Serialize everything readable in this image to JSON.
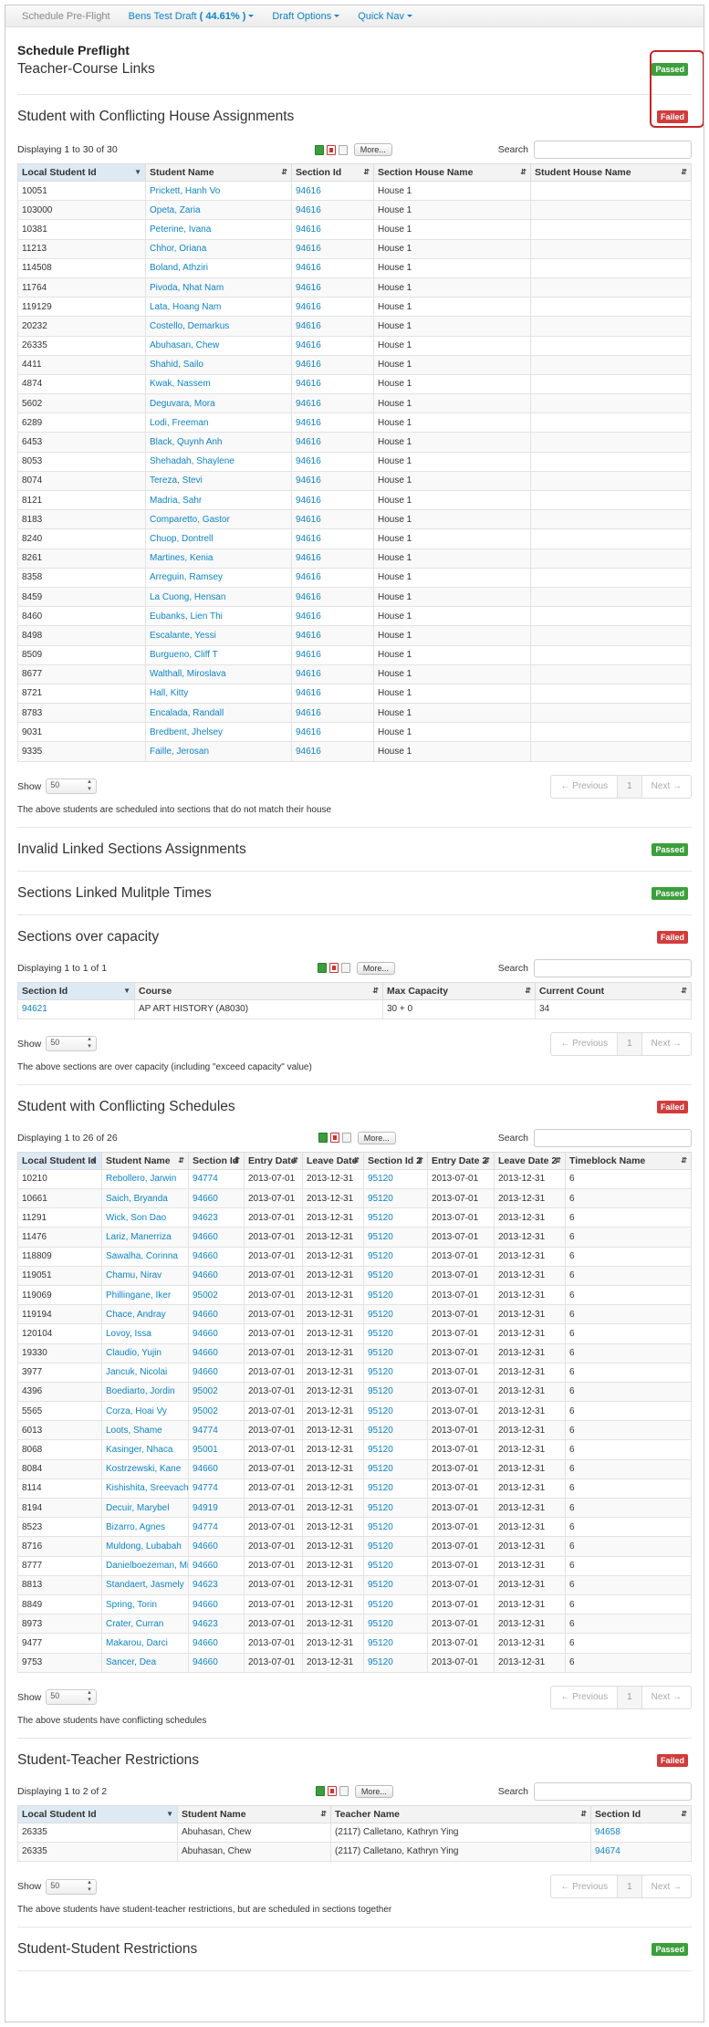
{
  "nav": {
    "home": "Schedule Pre-Flight",
    "draft_name": "Bens Test Draft",
    "draft_pct": "( 44.61% )",
    "draft_options": "Draft Options",
    "quick_nav": "Quick Nav"
  },
  "page_title": "Schedule Preflight",
  "sections": {
    "teacher_course": {
      "title": "Teacher-Course Links",
      "status": "Passed"
    },
    "house": {
      "title": "Student with Conflicting House Assignments",
      "status": "Failed",
      "displaying": "Displaying 1 to 30 of 30",
      "more": "More...",
      "search_label": "Search",
      "columns": [
        "Local Student Id",
        "Student Name",
        "Section Id",
        "Section House Name",
        "Student House Name"
      ],
      "rows": [
        [
          "10051",
          "Prickett, Hanh Vo",
          "94616",
          "House 1",
          ""
        ],
        [
          "103000",
          "Opeta, Zaria",
          "94616",
          "House 1",
          ""
        ],
        [
          "10381",
          "Peterine, Ivana",
          "94616",
          "House 1",
          ""
        ],
        [
          "11213",
          "Chhor, Oriana",
          "94616",
          "House 1",
          ""
        ],
        [
          "114508",
          "Boland, Athziri",
          "94616",
          "House 1",
          ""
        ],
        [
          "11764",
          "Pivoda, Nhat Nam",
          "94616",
          "House 1",
          ""
        ],
        [
          "119129",
          "Lata, Hoang Nam",
          "94616",
          "House 1",
          ""
        ],
        [
          "20232",
          "Costello, Demarkus",
          "94616",
          "House 1",
          ""
        ],
        [
          "26335",
          "Abuhasan, Chew",
          "94616",
          "House 1",
          ""
        ],
        [
          "4411",
          "Shahid, Sailo",
          "94616",
          "House 1",
          ""
        ],
        [
          "4874",
          "Kwak, Nassem",
          "94616",
          "House 1",
          ""
        ],
        [
          "5602",
          "Deguvara, Mora",
          "94616",
          "House 1",
          ""
        ],
        [
          "6289",
          "Lodi, Freeman",
          "94616",
          "House 1",
          ""
        ],
        [
          "6453",
          "Black, Quynh Anh",
          "94616",
          "House 1",
          ""
        ],
        [
          "8053",
          "Shehadah, Shaylene",
          "94616",
          "House 1",
          ""
        ],
        [
          "8074",
          "Tereza, Stevi",
          "94616",
          "House 1",
          ""
        ],
        [
          "8121",
          "Madria, Sahr",
          "94616",
          "House 1",
          ""
        ],
        [
          "8183",
          "Comparetto, Gastor",
          "94616",
          "House 1",
          ""
        ],
        [
          "8240",
          "Chuop, Dontrell",
          "94616",
          "House 1",
          ""
        ],
        [
          "8261",
          "Martines, Kenia",
          "94616",
          "House 1",
          ""
        ],
        [
          "8358",
          "Arreguin, Ramsey",
          "94616",
          "House 1",
          ""
        ],
        [
          "8459",
          "La Cuong, Hensan",
          "94616",
          "House 1",
          ""
        ],
        [
          "8460",
          "Eubanks, Lien Thi",
          "94616",
          "House 1",
          ""
        ],
        [
          "8498",
          "Escalante, Yessi",
          "94616",
          "House 1",
          ""
        ],
        [
          "8509",
          "Burgueno, Cliff T",
          "94616",
          "House 1",
          ""
        ],
        [
          "8677",
          "Walthall, Miroslava",
          "94616",
          "House 1",
          ""
        ],
        [
          "8721",
          "Hall, Kitty",
          "94616",
          "House 1",
          ""
        ],
        [
          "8783",
          "Encalada, Randall",
          "94616",
          "House 1",
          ""
        ],
        [
          "9031",
          "Bredbent, Jhelsey",
          "94616",
          "House 1",
          ""
        ],
        [
          "9335",
          "Faille, Jerosan",
          "94616",
          "House 1",
          ""
        ]
      ],
      "show_label": "Show",
      "page_size": "50",
      "prev": "← Previous",
      "page": "1",
      "next": "Next →",
      "note": "The above students are scheduled into sections that do not match their house"
    },
    "invalid_linked": {
      "title": "Invalid Linked Sections Assignments",
      "status": "Passed"
    },
    "linked_multiple": {
      "title": "Sections Linked Mulitple Times",
      "status": "Passed"
    },
    "capacity": {
      "title": "Sections over capacity",
      "status": "Failed",
      "displaying": "Displaying 1 to 1 of 1",
      "more": "More...",
      "search_label": "Search",
      "columns": [
        "Section Id",
        "Course",
        "Max Capacity",
        "Current Count"
      ],
      "rows": [
        [
          "94621",
          "AP ART HISTORY (A8030)",
          "30 + 0",
          "34"
        ]
      ],
      "show_label": "Show",
      "page_size": "50",
      "prev": "← Previous",
      "page": "1",
      "next": "Next →",
      "note": "The above sections are over capacity (including \"exceed capacity\" value)"
    },
    "schedules": {
      "title": "Student with Conflicting Schedules",
      "status": "Failed",
      "displaying": "Displaying 1 to 26 of 26",
      "more": "More...",
      "search_label": "Search",
      "columns": [
        "Local Student Id",
        "Student Name",
        "Section Id",
        "Entry Date",
        "Leave Date",
        "Section Id 2",
        "Entry Date 2",
        "Leave Date 2",
        "Timeblock Name"
      ],
      "rows": [
        [
          "10210",
          "Rebollero, Jarwin",
          "94774",
          "2013-07-01",
          "2013-12-31",
          "95120",
          "2013-07-01",
          "2013-12-31",
          "6"
        ],
        [
          "10661",
          "Saich, Bryanda",
          "94660",
          "2013-07-01",
          "2013-12-31",
          "95120",
          "2013-07-01",
          "2013-12-31",
          "6"
        ],
        [
          "11291",
          "Wick, Son Dao",
          "94623",
          "2013-07-01",
          "2013-12-31",
          "95120",
          "2013-07-01",
          "2013-12-31",
          "6"
        ],
        [
          "11476",
          "Lariz, Manerriza",
          "94660",
          "2013-07-01",
          "2013-12-31",
          "95120",
          "2013-07-01",
          "2013-12-31",
          "6"
        ],
        [
          "118809",
          "Sawalha, Corinna",
          "94660",
          "2013-07-01",
          "2013-12-31",
          "95120",
          "2013-07-01",
          "2013-12-31",
          "6"
        ],
        [
          "119051",
          "Chamu, Nirav",
          "94660",
          "2013-07-01",
          "2013-12-31",
          "95120",
          "2013-07-01",
          "2013-12-31",
          "6"
        ],
        [
          "119069",
          "Phillingane, Iker",
          "95002",
          "2013-07-01",
          "2013-12-31",
          "95120",
          "2013-07-01",
          "2013-12-31",
          "6"
        ],
        [
          "119194",
          "Chace, Andray",
          "94660",
          "2013-07-01",
          "2013-12-31",
          "95120",
          "2013-07-01",
          "2013-12-31",
          "6"
        ],
        [
          "120104",
          "Lovoy, Issa",
          "94660",
          "2013-07-01",
          "2013-12-31",
          "95120",
          "2013-07-01",
          "2013-12-31",
          "6"
        ],
        [
          "19330",
          "Claudio, Yujin",
          "94660",
          "2013-07-01",
          "2013-12-31",
          "95120",
          "2013-07-01",
          "2013-12-31",
          "6"
        ],
        [
          "3977",
          "Jancuk, Nicolai",
          "94660",
          "2013-07-01",
          "2013-12-31",
          "95120",
          "2013-07-01",
          "2013-12-31",
          "6"
        ],
        [
          "4396",
          "Boediarto, Jordin",
          "95002",
          "2013-07-01",
          "2013-12-31",
          "95120",
          "2013-07-01",
          "2013-12-31",
          "6"
        ],
        [
          "5565",
          "Corza, Hoai Vy",
          "95002",
          "2013-07-01",
          "2013-12-31",
          "95120",
          "2013-07-01",
          "2013-12-31",
          "6"
        ],
        [
          "6013",
          "Loots, Shame",
          "94774",
          "2013-07-01",
          "2013-12-31",
          "95120",
          "2013-07-01",
          "2013-12-31",
          "6"
        ],
        [
          "8068",
          "Kasinger, Nhaca",
          "95001",
          "2013-07-01",
          "2013-12-31",
          "95120",
          "2013-07-01",
          "2013-12-31",
          "6"
        ],
        [
          "8084",
          "Kostrzewski, Kane",
          "94660",
          "2013-07-01",
          "2013-12-31",
          "95120",
          "2013-07-01",
          "2013-12-31",
          "6"
        ],
        [
          "8114",
          "Kishishita, Sreevachav",
          "94774",
          "2013-07-01",
          "2013-12-31",
          "95120",
          "2013-07-01",
          "2013-12-31",
          "6"
        ],
        [
          "8194",
          "Decuir, Marybel",
          "94919",
          "2013-07-01",
          "2013-12-31",
          "95120",
          "2013-07-01",
          "2013-12-31",
          "6"
        ],
        [
          "8523",
          "Bizarro, Agnes",
          "94774",
          "2013-07-01",
          "2013-12-31",
          "95120",
          "2013-07-01",
          "2013-12-31",
          "6"
        ],
        [
          "8716",
          "Muldong, Lubabah",
          "94660",
          "2013-07-01",
          "2013-12-31",
          "95120",
          "2013-07-01",
          "2013-12-31",
          "6"
        ],
        [
          "8777",
          "Danielboezeman, Mimosa",
          "94660",
          "2013-07-01",
          "2013-12-31",
          "95120",
          "2013-07-01",
          "2013-12-31",
          "6"
        ],
        [
          "8813",
          "Standaert, Jasmely",
          "94623",
          "2013-07-01",
          "2013-12-31",
          "95120",
          "2013-07-01",
          "2013-12-31",
          "6"
        ],
        [
          "8849",
          "Spring, Torin",
          "94660",
          "2013-07-01",
          "2013-12-31",
          "95120",
          "2013-07-01",
          "2013-12-31",
          "6"
        ],
        [
          "8973",
          "Crater, Curran",
          "94623",
          "2013-07-01",
          "2013-12-31",
          "95120",
          "2013-07-01",
          "2013-12-31",
          "6"
        ],
        [
          "9477",
          "Makarou, Darci",
          "94660",
          "2013-07-01",
          "2013-12-31",
          "95120",
          "2013-07-01",
          "2013-12-31",
          "6"
        ],
        [
          "9753",
          "Sancer, Dea",
          "94660",
          "2013-07-01",
          "2013-12-31",
          "95120",
          "2013-07-01",
          "2013-12-31",
          "6"
        ]
      ],
      "show_label": "Show",
      "page_size": "50",
      "prev": "← Previous",
      "page": "1",
      "next": "Next →",
      "note": "The above students have conflicting schedules"
    },
    "teacher_restrictions": {
      "title": "Student-Teacher Restrictions",
      "status": "Failed",
      "displaying": "Displaying 1 to 2 of 2",
      "more": "More...",
      "search_label": "Search",
      "columns": [
        "Local Student Id",
        "Student Name",
        "Teacher Name",
        "Section Id"
      ],
      "rows": [
        [
          "26335",
          "Abuhasan, Chew",
          "(2117) Calletano, Kathryn Ying",
          "94658"
        ],
        [
          "26335",
          "Abuhasan, Chew",
          "(2117) Calletano, Kathryn Ying",
          "94674"
        ]
      ],
      "show_label": "Show",
      "page_size": "50",
      "prev": "← Previous",
      "page": "1",
      "next": "Next →",
      "note": "The above students have student-teacher restrictions, but are scheduled in sections together"
    },
    "student_restrictions": {
      "title": "Student-Student Restrictions",
      "status": "Passed"
    }
  },
  "colors": {
    "passed": "#3c9f3c",
    "failed": "#d23c3c",
    "link": "#0e84c9",
    "highlight": "#c52626"
  }
}
